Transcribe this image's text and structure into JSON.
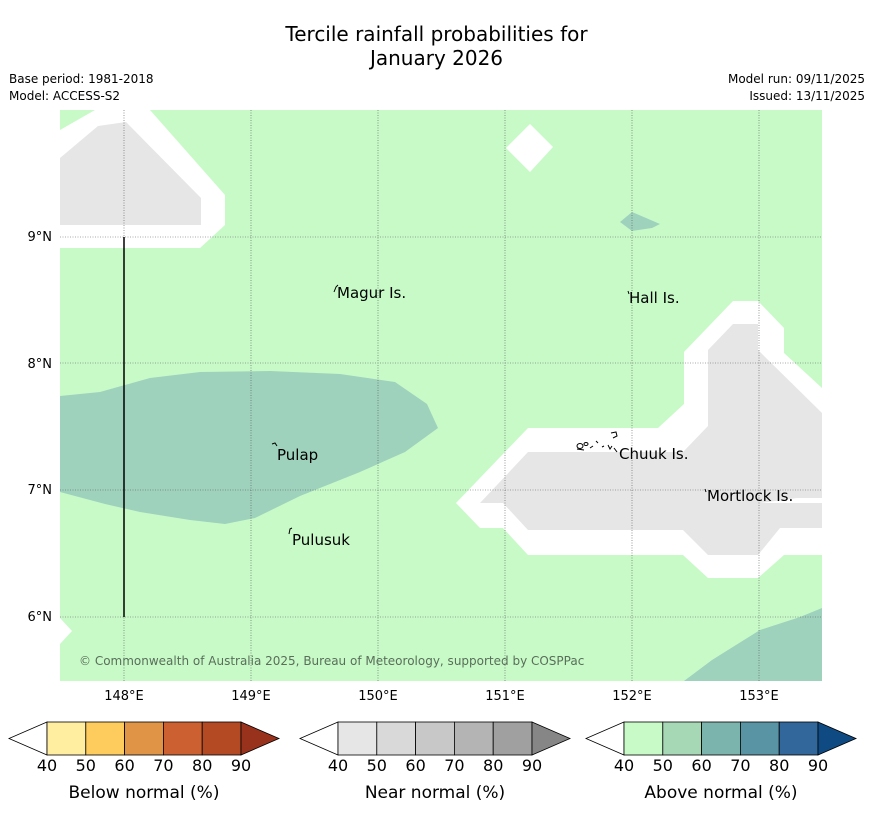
{
  "title": {
    "line1": "Tercile rainfall probabilities for",
    "line2": "January 2026"
  },
  "info": {
    "base_period": "Base period: 1981-2018",
    "model": "Model: ACCESS-S2",
    "model_run": "Model run: 09/11/2025",
    "issued": "Issued: 13/11/2025"
  },
  "map": {
    "lon_labels": [
      "148°E",
      "149°E",
      "150°E",
      "151°E",
      "152°E",
      "153°E"
    ],
    "lat_labels": [
      "9°N",
      "8°N",
      "7°N",
      "6°N"
    ],
    "places": [
      "Magur Is.",
      "Hall Is.",
      "Pulap",
      "Chuuk Is.",
      "Mortlock Is.",
      "Pulusuk"
    ],
    "copyright": "© Commonwealth of Australia 2025, Bureau of Meteorology, supported by COSPPac"
  },
  "colorbars": [
    {
      "name": "Below normal (%)",
      "ticks": [
        "40",
        "50",
        "60",
        "70",
        "80",
        "90"
      ],
      "colors": [
        "#ffffff",
        "#ffeda0",
        "#fecc5c",
        "#e09446",
        "#cc6030",
        "#b34a24",
        "#99321c"
      ]
    },
    {
      "name": "Near normal (%)",
      "ticks": [
        "40",
        "50",
        "60",
        "70",
        "80",
        "90"
      ],
      "colors": [
        "#ffffff",
        "#e6e6e6",
        "#d9d9d9",
        "#c8c8c8",
        "#b4b4b4",
        "#a0a0a0",
        "#868686"
      ]
    },
    {
      "name": "Above normal (%)",
      "ticks": [
        "40",
        "50",
        "60",
        "70",
        "80",
        "90"
      ],
      "colors": [
        "#ffffff",
        "#c8fac8",
        "#a6d8b6",
        "#7ab4ac",
        "#5894a4",
        "#31679a",
        "#104a82"
      ]
    }
  ]
}
